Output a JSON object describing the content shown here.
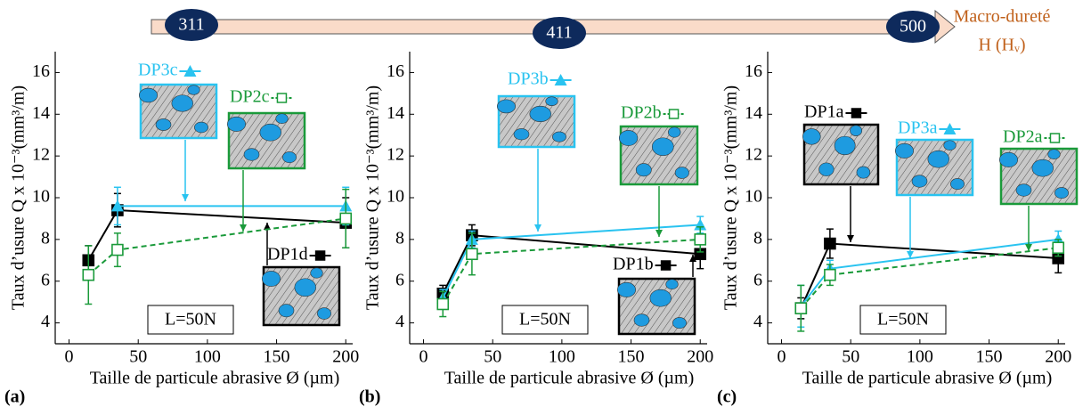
{
  "hardness_axis": {
    "values": [
      311,
      411,
      500
    ],
    "title": "Macro-dureté",
    "unit": "H (Hᵥ)"
  },
  "chart_data": [
    {
      "type": "line",
      "panel": "(a)",
      "annotation": "L=50N",
      "xlabel": "Taille de particule abrasive Ø (µm)",
      "ylabel": "Taux d’usure Q x 10⁻³(mm³/m)",
      "x": [
        14,
        35,
        200
      ],
      "series": [
        {
          "name": "DP1d",
          "color": "#000000",
          "marker": "square",
          "dashed": false,
          "values": [
            7.0,
            9.4,
            8.8
          ],
          "errors": [
            0.7,
            0.8,
            1.2
          ]
        },
        {
          "name": "DP3c",
          "color": "#29c3f0",
          "marker": "triangle",
          "dashed": false,
          "values": [
            null,
            9.6,
            9.6
          ],
          "errors": [
            null,
            0.9,
            0.9
          ]
        },
        {
          "name": "DP2c",
          "color": "#1a9a3a",
          "marker": "open-square",
          "dashed": true,
          "values": [
            6.3,
            7.5,
            9.0
          ],
          "errors": [
            1.4,
            0.8,
            1.4
          ]
        }
      ],
      "xlim": [
        -10,
        205
      ],
      "xticks": [
        0,
        50,
        100,
        150,
        200
      ],
      "ylim": [
        3,
        17
      ],
      "yticks": [
        4,
        6,
        8,
        10,
        12,
        14,
        16
      ]
    },
    {
      "type": "line",
      "panel": "(b)",
      "annotation": "L=50N",
      "xlabel": "Taille de particule abrasive Ø (µm)",
      "ylabel": "Taux d’usure Q x 10⁻³(mm³/m)",
      "x": [
        14,
        35,
        200
      ],
      "series": [
        {
          "name": "DP1b",
          "color": "#000000",
          "marker": "square",
          "dashed": false,
          "values": [
            5.4,
            8.2,
            7.3
          ],
          "errors": [
            0.4,
            0.5,
            0.7
          ]
        },
        {
          "name": "DP3b",
          "color": "#29c3f0",
          "marker": "triangle",
          "dashed": false,
          "values": [
            5.2,
            8.0,
            8.7
          ],
          "errors": [
            0.4,
            0.4,
            0.4
          ]
        },
        {
          "name": "DP2b",
          "color": "#1a9a3a",
          "marker": "open-square",
          "dashed": true,
          "values": [
            4.9,
            7.3,
            8.0
          ],
          "errors": [
            0.6,
            1.0,
            0.6
          ]
        }
      ],
      "xlim": [
        -10,
        205
      ],
      "xticks": [
        0,
        50,
        100,
        150,
        200
      ],
      "ylim": [
        3,
        17
      ],
      "yticks": [
        4,
        6,
        8,
        10,
        12,
        14,
        16
      ]
    },
    {
      "type": "line",
      "panel": "(c)",
      "annotation": "L=50N",
      "xlabel": "Taille de particule abrasive Ø (µm)",
      "ylabel": "Taux d’usure Q x 10⁻³(mm³/m)",
      "x": [
        14,
        35,
        200
      ],
      "series": [
        {
          "name": "DP1a",
          "color": "#000000",
          "marker": "square",
          "dashed": false,
          "values": [
            4.7,
            7.8,
            7.1
          ],
          "errors": [
            0.5,
            0.7,
            0.7
          ]
        },
        {
          "name": "DP3a",
          "color": "#29c3f0",
          "marker": "triangle",
          "dashed": false,
          "values": [
            4.8,
            6.6,
            8.0
          ],
          "errors": [
            1.0,
            0.4,
            0.4
          ]
        },
        {
          "name": "DP2a",
          "color": "#1a9a3a",
          "marker": "open-square",
          "dashed": true,
          "values": [
            4.7,
            6.3,
            7.6
          ],
          "errors": [
            1.1,
            0.5,
            0.4
          ]
        }
      ],
      "xlim": [
        -10,
        205
      ],
      "xticks": [
        0,
        50,
        100,
        150,
        200
      ],
      "ylim": [
        3,
        17
      ],
      "yticks": [
        4,
        6,
        8,
        10,
        12,
        14,
        16
      ]
    }
  ]
}
